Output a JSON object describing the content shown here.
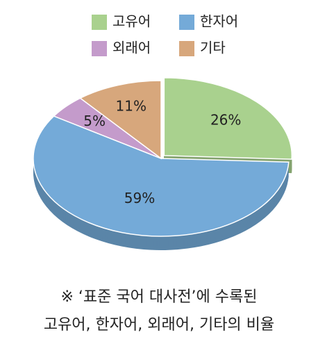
{
  "chart_data": {
    "type": "pie",
    "categories": [
      "고유어",
      "한자어",
      "외래어",
      "기타"
    ],
    "values": [
      26,
      59,
      5,
      11
    ],
    "value_labels": [
      "26%",
      "59%",
      "5%",
      "11%"
    ],
    "colors": [
      "#a9d18e",
      "#74aad8",
      "#c49bcb",
      "#d7a77c"
    ],
    "legend": "top",
    "caption": [
      "※ ‘표준 국어 대사전’에 수록된",
      "고유어, 한자어, 외래어, 기타의 비율"
    ]
  }
}
